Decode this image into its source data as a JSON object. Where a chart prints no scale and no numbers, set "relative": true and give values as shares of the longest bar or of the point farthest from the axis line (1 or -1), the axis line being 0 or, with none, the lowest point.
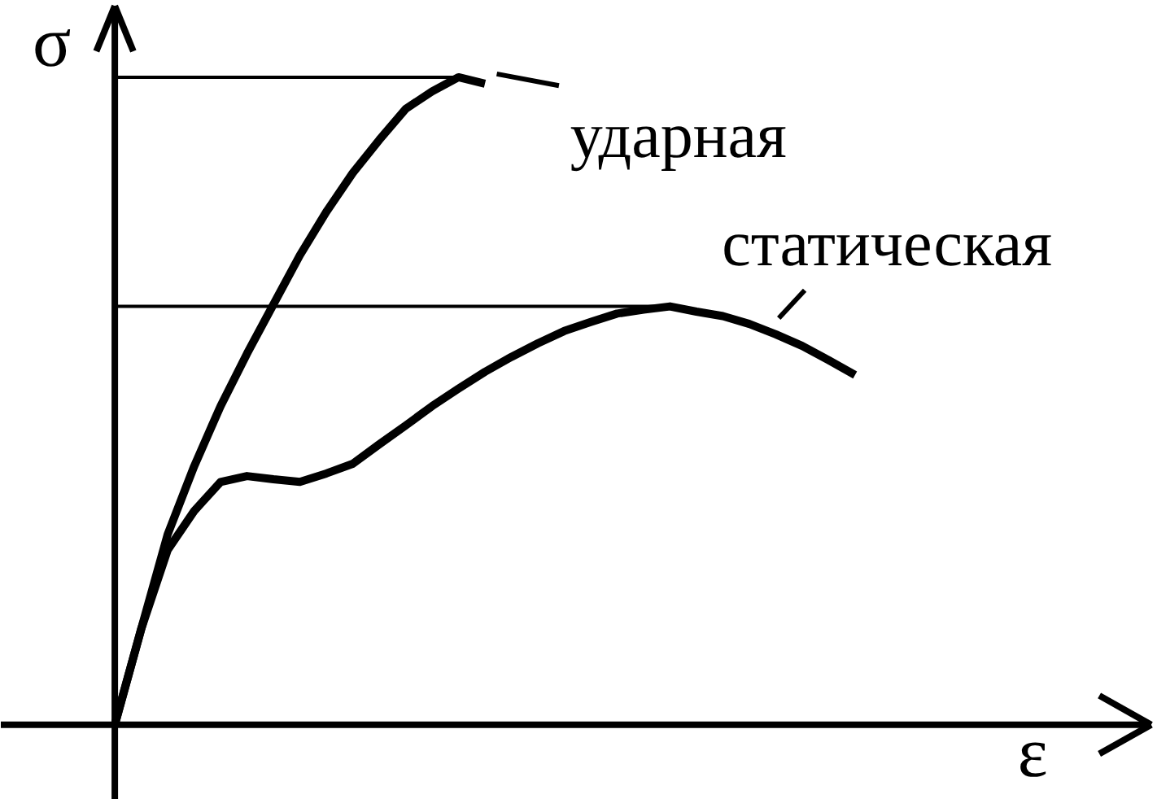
{
  "chart_data": {
    "type": "line",
    "relative": true,
    "xlabel": "ε",
    "ylabel": "σ",
    "grid": false,
    "categories": [
      null,
      null,
      null,
      null,
      null,
      null,
      null,
      null,
      null,
      null,
      null,
      null,
      null,
      null,
      null,
      null,
      null,
      null,
      null,
      null,
      null,
      null,
      null,
      null,
      null,
      null,
      null,
      null,
      null
    ],
    "series": [
      {
        "name": "ударная",
        "color": "#000000",
        "values": [
          0,
          0.148,
          0.294,
          0.399,
          0.492,
          0.573,
          0.649,
          0.725,
          0.792,
          0.852,
          0.903,
          0.951,
          0.978,
          1.0,
          0.99,
          null,
          null,
          null,
          null,
          null,
          null,
          null,
          null,
          null,
          null,
          null,
          null,
          null,
          null
        ]
      },
      {
        "name": "статическая",
        "color": "#000000",
        "values": [
          0,
          0.148,
          0.27,
          0.33,
          0.375,
          0.384,
          0.379,
          0.375,
          0.388,
          0.403,
          0.433,
          0.462,
          0.492,
          0.519,
          0.545,
          0.568,
          0.589,
          0.608,
          0.622,
          0.635,
          0.641,
          0.646,
          0.638,
          0.631,
          0.619,
          0.603,
          0.585,
          0.563,
          0.54
        ]
      }
    ],
    "ref_lines": [
      {
        "axis": "y",
        "value": 1.0,
        "color": "#000000"
      },
      {
        "axis": "y",
        "value": 0.646,
        "color": "#000000"
      }
    ]
  }
}
